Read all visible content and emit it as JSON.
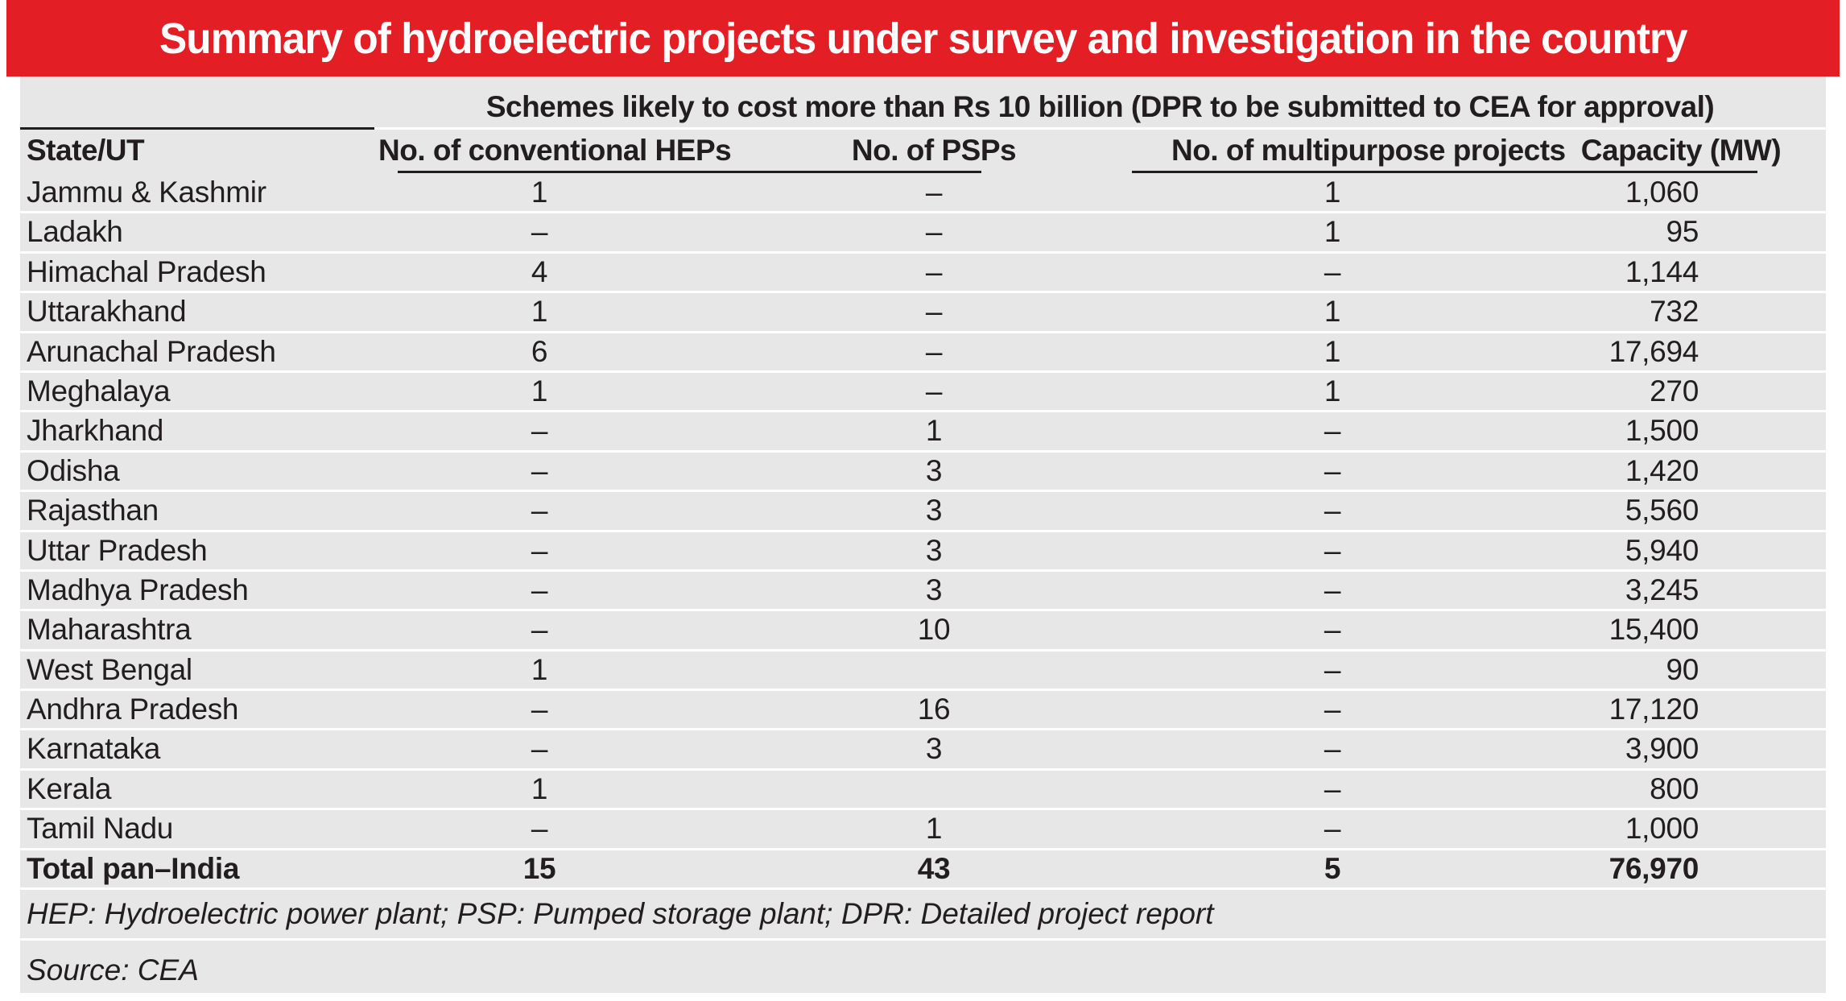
{
  "title": "Summary of hydroelectric projects under survey and investigation in the country",
  "table": {
    "group_header": "Schemes likely to cost more than Rs 10 billion (DPR to be submitted to CEA for approval)",
    "columns": [
      "State/UT",
      "No. of conventional HEPs",
      "No. of PSPs",
      "No. of multipurpose projects",
      "Capacity (MW)"
    ],
    "rows": [
      {
        "state": "Jammu & Kashmir",
        "hep": "1",
        "psp": "",
        "multi": "1",
        "capacity": "1,060"
      },
      {
        "state": "Ladakh",
        "hep": "–",
        "psp": "–",
        "multi": "1",
        "capacity": "95"
      },
      {
        "state": "Himachal Pradesh",
        "hep": "4",
        "psp": "–",
        "multi": "–",
        "capacity": "1,144"
      },
      {
        "state": "Uttarakhand",
        "hep": "1",
        "psp": "–",
        "multi": "1",
        "capacity": "732"
      },
      {
        "state": "Arunachal Pradesh",
        "hep": "6",
        "psp": "–",
        "multi": "1",
        "capacity": "17,694"
      },
      {
        "state": "Meghalaya",
        "hep": "1",
        "psp": "–",
        "multi": "1",
        "capacity": "270"
      },
      {
        "state": "Jharkhand",
        "hep": "–",
        "psp": "1",
        "multi": "–",
        "capacity": "1,500"
      },
      {
        "state": "Odisha",
        "hep": "–",
        "psp": "3",
        "multi": "–",
        "capacity": "1,420"
      },
      {
        "state": "Rajasthan",
        "hep": "–",
        "psp": "3",
        "multi": "–",
        "capacity": "5,560"
      },
      {
        "state": "Uttar Pradesh",
        "hep": "–",
        "psp": "3",
        "multi": "–",
        "capacity": "5,940"
      },
      {
        "state": "Madhya Pradesh",
        "hep": "–",
        "psp": "3",
        "multi": "–",
        "capacity": "3,245"
      },
      {
        "state": "Maharashtra",
        "hep": "–",
        "psp": "10",
        "multi": "–",
        "capacity": "15,400"
      },
      {
        "state": "West Bengal",
        "hep": "1",
        "psp": "",
        "multi": "–",
        "capacity": "90"
      },
      {
        "state": "Andhra Pradesh",
        "hep": "–",
        "psp": "16",
        "multi": "–",
        "capacity": "17,120"
      },
      {
        "state": "Karnataka",
        "hep": "–",
        "psp": "3",
        "multi": "–",
        "capacity": "3,900"
      },
      {
        "state": "Kerala",
        "hep": "1",
        "psp": "",
        "multi": "–",
        "capacity": "800"
      },
      {
        "state": "Tamil Nadu",
        "hep": "–",
        "psp": "1",
        "multi": "–",
        "capacity": "1,000"
      }
    ],
    "total_row": {
      "state": "Total pan–India",
      "hep": "15",
      "psp": "43",
      "multi": "5",
      "capacity": "76,970"
    },
    "footnote": "HEP: Hydroelectric power plant; PSP: Pumped storage plant; DPR: Detailed project report",
    "source": "Source: CEA"
  },
  "colors": {
    "accent_red": "#e31e25",
    "panel_gray": "#e7e7e8",
    "rule_dark": "#221e1f",
    "rule_white": "#ffffff",
    "text": "#221e1f",
    "title_text": "#ffffff"
  },
  "note_jammu_psp_cell": "–"
}
